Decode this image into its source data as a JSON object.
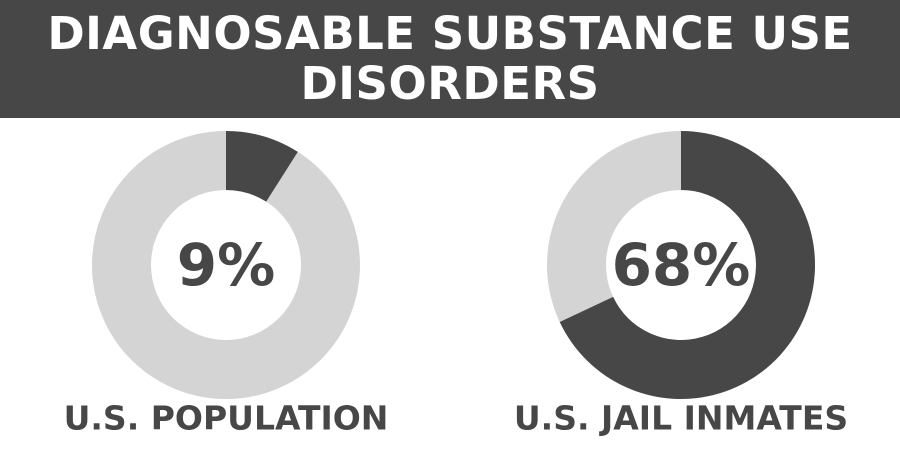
{
  "title": "DIAGNOSABLE SUBSTANCE USE DISORDERS",
  "chart_data": [
    {
      "type": "donut",
      "title": "U.S. POPULATION",
      "values": [
        9
      ],
      "value_labels": [
        "9%"
      ],
      "range": [
        0,
        100
      ],
      "color": "#474747",
      "track_color": "#d4d4d4"
    },
    {
      "type": "donut",
      "title": "U.S. JAIL INMATES",
      "values": [
        68
      ],
      "value_labels": [
        "68%"
      ],
      "range": [
        0,
        100
      ],
      "color": "#474747",
      "track_color": "#d4d4d4"
    }
  ]
}
